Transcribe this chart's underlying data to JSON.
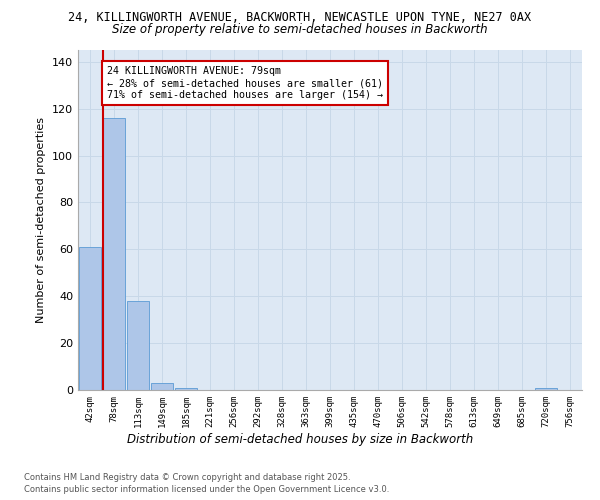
{
  "title": "24, KILLINGWORTH AVENUE, BACKWORTH, NEWCASTLE UPON TYNE, NE27 0AX",
  "subtitle": "Size of property relative to semi-detached houses in Backworth",
  "xlabel": "Distribution of semi-detached houses by size in Backworth",
  "ylabel": "Number of semi-detached properties",
  "categories": [
    "42sqm",
    "78sqm",
    "113sqm",
    "149sqm",
    "185sqm",
    "221sqm",
    "256sqm",
    "292sqm",
    "328sqm",
    "363sqm",
    "399sqm",
    "435sqm",
    "470sqm",
    "506sqm",
    "542sqm",
    "578sqm",
    "613sqm",
    "649sqm",
    "685sqm",
    "720sqm",
    "756sqm"
  ],
  "values": [
    61,
    116,
    38,
    3,
    1,
    0,
    0,
    0,
    0,
    0,
    0,
    0,
    0,
    0,
    0,
    0,
    0,
    0,
    0,
    1,
    0
  ],
  "bar_color": "#aec6e8",
  "bar_edge_color": "#5b9bd5",
  "ylim": [
    0,
    145
  ],
  "yticks": [
    0,
    20,
    40,
    60,
    80,
    100,
    120,
    140
  ],
  "property_size": 79,
  "property_label": "24 KILLINGWORTH AVENUE: 79sqm",
  "pct_smaller": 28,
  "count_smaller": 61,
  "pct_larger": 71,
  "count_larger": 154,
  "red_line_color": "#cc0000",
  "annotation_box_color": "#cc0000",
  "grid_color": "#c8d8e8",
  "background_color": "#dde8f4",
  "footer_line1": "Contains HM Land Registry data © Crown copyright and database right 2025.",
  "footer_line2": "Contains public sector information licensed under the Open Government Licence v3.0."
}
